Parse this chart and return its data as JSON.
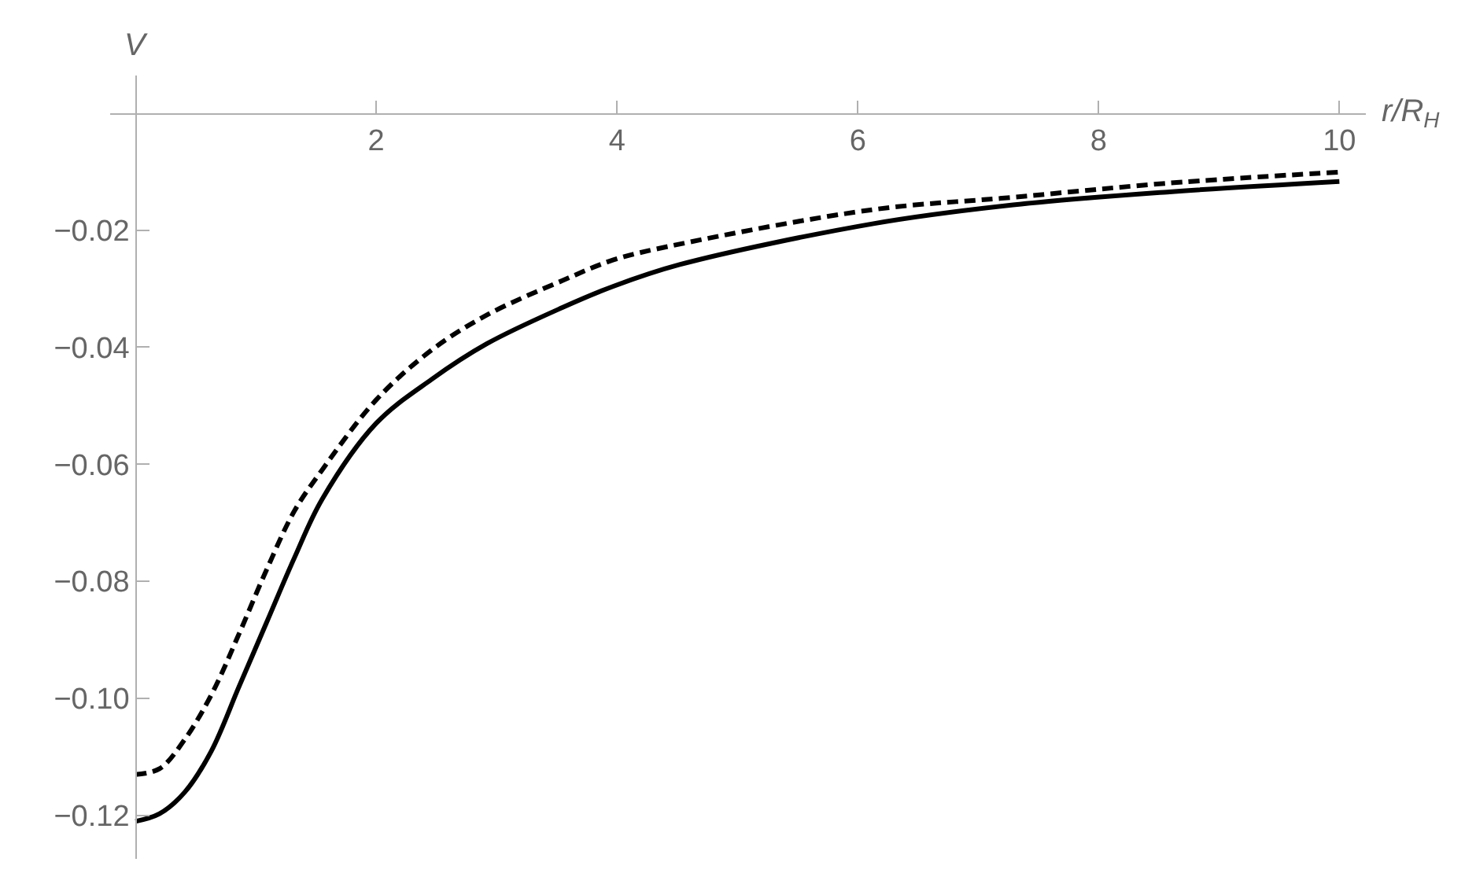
{
  "chart_data": {
    "type": "line",
    "xlabel": "r/R$_{H}$",
    "ylabel": "V",
    "xlim": [
      -0.21,
      10.22
    ],
    "ylim": [
      -0.1274,
      0.0064
    ],
    "xticks": [
      2,
      4,
      6,
      8,
      10
    ],
    "yticks": [
      {
        "value": -0.12,
        "label": "−0.12"
      },
      {
        "value": -0.1,
        "label": "−0.10"
      },
      {
        "value": -0.08,
        "label": "−0.08"
      },
      {
        "value": -0.06,
        "label": "−0.06"
      },
      {
        "value": -0.04,
        "label": "−0.04"
      },
      {
        "value": -0.02,
        "label": "−0.02"
      }
    ],
    "grid": false,
    "series": [
      {
        "color": "#000000",
        "line_style": "solid",
        "x": [
          0,
          0.2,
          0.41,
          0.63,
          0.86,
          1.09,
          1.32,
          1.55,
          2.0,
          2.46,
          2.92,
          3.55,
          3.97,
          4.52,
          6.13,
          7.29,
          8.57,
          10
        ],
        "values": [
          -0.121,
          -0.1197,
          -0.116,
          -0.109,
          -0.098,
          -0.087,
          -0.076,
          -0.066,
          -0.053,
          -0.0455,
          -0.0394,
          -0.0332,
          -0.0296,
          -0.0259,
          -0.0189,
          -0.0157,
          -0.0135,
          -0.0117
        ]
      },
      {
        "color": "#000000",
        "line_style": "dashed",
        "x": [
          0,
          0.2,
          0.41,
          0.64,
          0.86,
          1.09,
          1.32,
          1.55,
          2.0,
          2.46,
          2.92,
          3.55,
          3.97,
          4.52,
          6.13,
          7.29,
          8.57,
          10
        ],
        "values": [
          -0.113,
          -0.112,
          -0.107,
          -0.099,
          -0.089,
          -0.078,
          -0.068,
          -0.061,
          -0.049,
          -0.0405,
          -0.0345,
          -0.0286,
          -0.0251,
          -0.0224,
          -0.0165,
          -0.0144,
          -0.012,
          -0.0101
        ]
      }
    ]
  }
}
